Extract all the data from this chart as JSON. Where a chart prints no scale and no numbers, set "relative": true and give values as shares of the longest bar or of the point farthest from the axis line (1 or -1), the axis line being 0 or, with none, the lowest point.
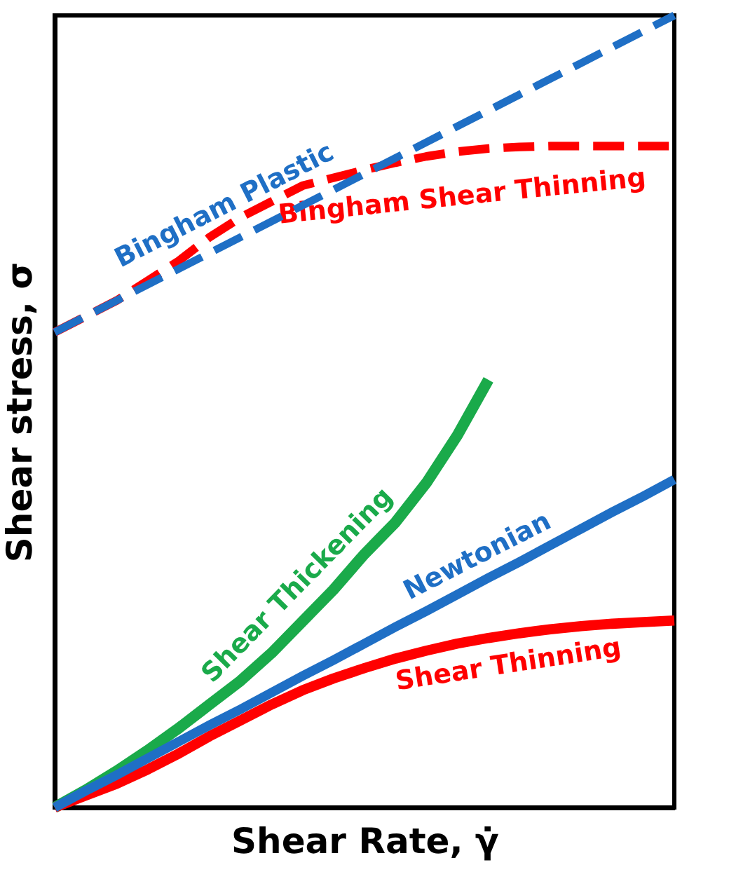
{
  "chart_data": {
    "type": "line",
    "relative": true,
    "xlabel": "Shear Rate, γ̇",
    "ylabel": "Shear stress, σ",
    "legend": false,
    "grid": false,
    "tick_labels": false,
    "marker": "none",
    "categories": [
      null,
      null,
      null,
      null,
      null,
      null,
      null,
      null,
      null,
      null,
      null,
      null,
      null,
      null,
      null,
      null,
      null,
      null,
      null,
      null,
      null
    ],
    "series": [
      {
        "name": "Bingham Plastic",
        "color": "#1f6fc5",
        "line_style": "dashed",
        "values": [
          0.6,
          0.62,
          0.64,
          0.66,
          0.68,
          0.7,
          0.72,
          0.74,
          0.76,
          0.78,
          0.8,
          0.82,
          0.84,
          0.86,
          0.88,
          0.9,
          0.92,
          0.94,
          0.96,
          0.98,
          1.0
        ]
      },
      {
        "name": "Bingham Shear Thinning",
        "color": "#ff0000",
        "line_style": "dashed",
        "values": [
          0.6,
          0.62,
          0.64,
          0.665,
          0.69,
          0.72,
          0.745,
          0.765,
          0.785,
          0.795,
          0.805,
          0.814,
          0.822,
          0.828,
          0.832,
          0.834,
          0.835,
          0.835,
          0.835,
          0.835,
          0.835
        ]
      },
      {
        "name": "Newtonian",
        "color": "#1f6fc5",
        "line_style": "solid",
        "values": [
          0,
          0.021,
          0.041,
          0.062,
          0.083,
          0.104,
          0.124,
          0.145,
          0.166,
          0.186,
          0.207,
          0.228,
          0.248,
          0.269,
          0.29,
          0.31,
          0.331,
          0.352,
          0.373,
          0.393,
          0.414
        ]
      },
      {
        "name": "Shear Thinning",
        "color": "#ff0000",
        "line_style": "solid",
        "values": [
          0,
          0.015,
          0.03,
          0.048,
          0.068,
          0.09,
          0.11,
          0.13,
          0.148,
          0.163,
          0.176,
          0.188,
          0.198,
          0.207,
          0.214,
          0.22,
          0.225,
          0.229,
          0.232,
          0.234,
          0.236
        ]
      },
      {
        "name": "Shear Thickening",
        "color": "#1aaa4a",
        "line_style": "solid",
        "values": [
          0,
          0.022,
          0.046,
          0.072,
          0.1,
          0.13,
          0.16,
          0.195,
          0.235,
          0.275,
          0.32,
          0.36,
          0.41,
          0.47,
          0.54,
          null,
          null,
          null,
          null,
          null,
          null
        ]
      }
    ]
  }
}
